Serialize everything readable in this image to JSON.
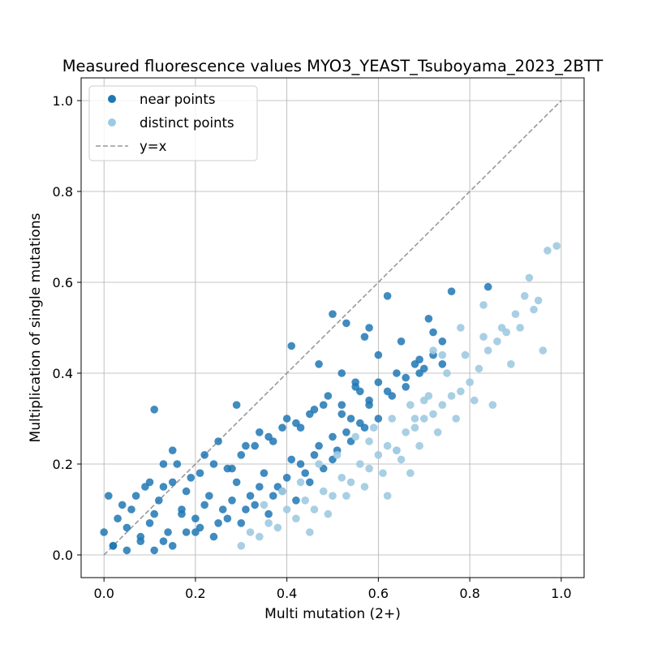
{
  "chart_data": {
    "type": "scatter",
    "title": "Measured fluorescence values MYO3_YEAST_Tsuboyama_2023_2BTT",
    "xlabel": "Multi mutation (2+)",
    "ylabel": "Multiplication of single mutations",
    "xlim": [
      -0.05,
      1.05
    ],
    "ylim": [
      -0.05,
      1.05
    ],
    "xticks": [
      "0.0",
      "0.2",
      "0.4",
      "0.6",
      "0.8",
      "1.0"
    ],
    "yticks": [
      "0.0",
      "0.2",
      "0.4",
      "0.6",
      "0.8",
      "1.0"
    ],
    "grid": true,
    "legend_position": "top-left",
    "colors": {
      "near": "#1f77b4",
      "distinct": "#9ecae1",
      "identity": "#999999"
    },
    "series": [
      {
        "name": "near points",
        "color": "#1f77b4",
        "x": [
          0.0,
          0.01,
          0.02,
          0.03,
          0.05,
          0.06,
          0.08,
          0.09,
          0.1,
          0.12,
          0.13,
          0.15,
          0.17,
          0.18,
          0.2,
          0.21,
          0.22,
          0.24,
          0.25,
          0.27,
          0.28,
          0.3,
          0.31,
          0.33,
          0.34,
          0.36,
          0.37,
          0.39,
          0.4,
          0.42,
          0.43,
          0.45,
          0.46,
          0.48,
          0.5,
          0.52,
          0.54,
          0.56,
          0.58,
          0.6,
          0.62,
          0.64,
          0.66,
          0.68,
          0.7,
          0.72,
          0.74,
          0.02,
          0.05,
          0.08,
          0.11,
          0.14,
          0.17,
          0.2,
          0.23,
          0.26,
          0.29,
          0.32,
          0.35,
          0.38,
          0.41,
          0.44,
          0.47,
          0.5,
          0.53,
          0.56,
          0.04,
          0.07,
          0.1,
          0.13,
          0.16,
          0.19,
          0.22,
          0.25,
          0.28,
          0.31,
          0.34,
          0.37,
          0.4,
          0.43,
          0.46,
          0.49,
          0.52,
          0.55,
          0.58,
          0.11,
          0.15,
          0.18,
          0.21,
          0.24,
          0.27,
          0.3,
          0.33,
          0.36,
          0.39,
          0.42,
          0.45,
          0.48,
          0.51,
          0.54,
          0.57,
          0.6,
          0.63,
          0.66,
          0.69,
          0.72,
          0.5,
          0.53,
          0.58,
          0.62,
          0.65,
          0.71,
          0.76,
          0.84,
          0.11,
          0.15,
          0.13,
          0.29,
          0.41,
          0.47,
          0.6,
          0.57,
          0.55,
          0.52,
          0.69,
          0.74
        ],
        "y": [
          0.05,
          0.13,
          0.02,
          0.08,
          0.01,
          0.1,
          0.04,
          0.15,
          0.07,
          0.12,
          0.03,
          0.16,
          0.09,
          0.14,
          0.05,
          0.18,
          0.11,
          0.2,
          0.07,
          0.19,
          0.12,
          0.22,
          0.1,
          0.24,
          0.15,
          0.26,
          0.13,
          0.28,
          0.17,
          0.29,
          0.2,
          0.31,
          0.22,
          0.33,
          0.26,
          0.33,
          0.3,
          0.36,
          0.34,
          0.38,
          0.36,
          0.4,
          0.37,
          0.42,
          0.41,
          0.44,
          0.47,
          0.02,
          0.06,
          0.03,
          0.09,
          0.05,
          0.1,
          0.08,
          0.13,
          0.1,
          0.16,
          0.13,
          0.18,
          0.15,
          0.21,
          0.18,
          0.24,
          0.21,
          0.27,
          0.29,
          0.11,
          0.13,
          0.16,
          0.15,
          0.2,
          0.17,
          0.22,
          0.25,
          0.19,
          0.24,
          0.27,
          0.25,
          0.3,
          0.28,
          0.32,
          0.35,
          0.31,
          0.37,
          0.33,
          0.01,
          0.02,
          0.05,
          0.06,
          0.04,
          0.08,
          0.07,
          0.11,
          0.09,
          0.14,
          0.12,
          0.16,
          0.19,
          0.23,
          0.25,
          0.28,
          0.3,
          0.35,
          0.39,
          0.43,
          0.49,
          0.53,
          0.51,
          0.5,
          0.57,
          0.47,
          0.52,
          0.58,
          0.59,
          0.32,
          0.23,
          0.2,
          0.33,
          0.46,
          0.42,
          0.44,
          0.48,
          0.38,
          0.4,
          0.4,
          0.42
        ]
      },
      {
        "name": "distinct points",
        "color": "#9ecae1",
        "x": [
          0.3,
          0.32,
          0.34,
          0.36,
          0.38,
          0.4,
          0.42,
          0.44,
          0.46,
          0.48,
          0.5,
          0.52,
          0.54,
          0.56,
          0.58,
          0.6,
          0.62,
          0.64,
          0.66,
          0.68,
          0.7,
          0.72,
          0.74,
          0.76,
          0.78,
          0.8,
          0.82,
          0.84,
          0.86,
          0.88,
          0.9,
          0.92,
          0.94,
          0.97,
          0.99,
          0.35,
          0.39,
          0.43,
          0.47,
          0.51,
          0.55,
          0.59,
          0.63,
          0.67,
          0.71,
          0.75,
          0.79,
          0.83,
          0.87,
          0.91,
          0.45,
          0.49,
          0.53,
          0.57,
          0.61,
          0.65,
          0.69,
          0.73,
          0.77,
          0.81,
          0.85,
          0.89,
          0.93,
          0.95,
          0.96,
          0.62,
          0.67,
          0.58,
          0.64,
          0.68,
          0.7,
          0.74,
          0.72,
          0.78,
          0.83
        ],
        "y": [
          0.02,
          0.05,
          0.04,
          0.07,
          0.06,
          0.1,
          0.08,
          0.12,
          0.1,
          0.14,
          0.13,
          0.17,
          0.16,
          0.2,
          0.19,
          0.22,
          0.24,
          0.23,
          0.27,
          0.28,
          0.3,
          0.31,
          0.33,
          0.35,
          0.36,
          0.38,
          0.41,
          0.45,
          0.47,
          0.49,
          0.53,
          0.57,
          0.54,
          0.67,
          0.68,
          0.11,
          0.14,
          0.16,
          0.2,
          0.22,
          0.26,
          0.28,
          0.3,
          0.33,
          0.35,
          0.4,
          0.44,
          0.48,
          0.5,
          0.5,
          0.05,
          0.09,
          0.13,
          0.15,
          0.18,
          0.21,
          0.24,
          0.27,
          0.3,
          0.34,
          0.33,
          0.42,
          0.61,
          0.56,
          0.45,
          0.13,
          0.18,
          0.25,
          0.23,
          0.3,
          0.34,
          0.44,
          0.45,
          0.5,
          0.55
        ]
      },
      {
        "name": "y=x",
        "style": "dashed",
        "color": "#999999",
        "x": [
          0,
          1
        ],
        "y": [
          0,
          1
        ]
      }
    ]
  }
}
